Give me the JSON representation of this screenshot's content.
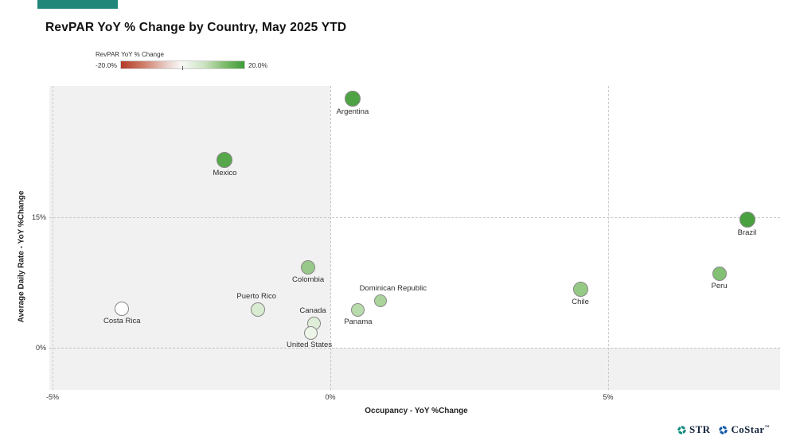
{
  "header": {
    "brand_bar_color": "#21867a",
    "title": "RevPAR YoY % Change by Country, May 2025 YTD"
  },
  "legend": {
    "title": "RevPAR YoY % Change",
    "min_label": "-20.0%",
    "max_label": "20.0%",
    "gradient_left_color": "#b23a26",
    "gradient_mid_color": "#f7f5f4",
    "gradient_right_color": "#3e9b36"
  },
  "chart_data": {
    "type": "scatter",
    "title": "RevPAR YoY % Change by Country, May 2025 YTD",
    "xlabel": "Occupancy - YoY %Change",
    "ylabel": "Average Daily Rate - YoY %Change",
    "xlim": [
      -5.1,
      8.1
    ],
    "ylim": [
      -4.9,
      30.1
    ],
    "grid": "dashed",
    "highlight_quadrant": "x>0 and y>0 shown white; other regions shaded light gray",
    "color_encoding": "bubble fill = RevPAR YoY % change, red (-20.0%) to green (+20.0%)",
    "x_ticks": [
      {
        "value": -5,
        "label": "-5%"
      },
      {
        "value": 0,
        "label": "0%"
      },
      {
        "value": 5,
        "label": "5%"
      }
    ],
    "y_ticks": [
      {
        "value": 0,
        "label": "0%"
      },
      {
        "value": 15,
        "label": "15%"
      }
    ],
    "points": [
      {
        "country": "Argentina",
        "occupancy_yoy_pct": 0.4,
        "adr_yoy_pct": 28.6,
        "color": "#4ea345",
        "r": 10,
        "label_pos": "below",
        "label_dx": 0
      },
      {
        "country": "Mexico",
        "occupancy_yoy_pct": -1.9,
        "adr_yoy_pct": 21.6,
        "color": "#55a74a",
        "r": 10,
        "label_pos": "below",
        "label_dx": 0
      },
      {
        "country": "Brazil",
        "occupancy_yoy_pct": 7.5,
        "adr_yoy_pct": 14.7,
        "color": "#48a13e",
        "r": 10,
        "label_pos": "below",
        "label_dx": 0
      },
      {
        "country": "Peru",
        "occupancy_yoy_pct": 7.0,
        "adr_yoy_pct": 8.5,
        "color": "#82c173",
        "r": 9,
        "label_pos": "below",
        "label_dx": 0
      },
      {
        "country": "Chile",
        "occupancy_yoy_pct": 4.5,
        "adr_yoy_pct": 6.7,
        "color": "#95ca85",
        "r": 9.5,
        "label_pos": "below",
        "label_dx": 0
      },
      {
        "country": "Colombia",
        "occupancy_yoy_pct": -0.4,
        "adr_yoy_pct": 9.2,
        "color": "#98c98a",
        "r": 9,
        "label_pos": "below",
        "label_dx": 0
      },
      {
        "country": "Dominican Republic",
        "occupancy_yoy_pct": 0.9,
        "adr_yoy_pct": 5.4,
        "color": "#abd49d",
        "r": 8,
        "label_pos": "above",
        "label_dx": 16
      },
      {
        "country": "Panama",
        "occupancy_yoy_pct": 0.5,
        "adr_yoy_pct": 4.3,
        "color": "#b9dcac",
        "r": 8.5,
        "label_pos": "below",
        "label_dx": 0
      },
      {
        "country": "Puerto Rico",
        "occupancy_yoy_pct": -1.3,
        "adr_yoy_pct": 4.4,
        "color": "#d9ecd2",
        "r": 9,
        "label_pos": "above",
        "label_dx": -2
      },
      {
        "country": "Costa Rica",
        "occupancy_yoy_pct": -3.75,
        "adr_yoy_pct": 4.5,
        "color": "#fdfefd",
        "r": 9,
        "label_pos": "below",
        "label_dx": 0
      },
      {
        "country": "Canada",
        "occupancy_yoy_pct": -0.3,
        "adr_yoy_pct": 2.8,
        "color": "#dfeed8",
        "r": 8.5,
        "label_pos": "above",
        "label_dx": -1
      },
      {
        "country": "United States",
        "occupancy_yoy_pct": -0.35,
        "adr_yoy_pct": 1.7,
        "color": "#ecf5e8",
        "r": 8.5,
        "label_pos": "below",
        "label_dx": -2
      }
    ]
  },
  "footer": {
    "str_label": "STR",
    "costar_label": "CoStar",
    "costar_mark": "™",
    "str_icon_color": "#0f8a7d",
    "costar_icon_color": "#1158a8"
  }
}
